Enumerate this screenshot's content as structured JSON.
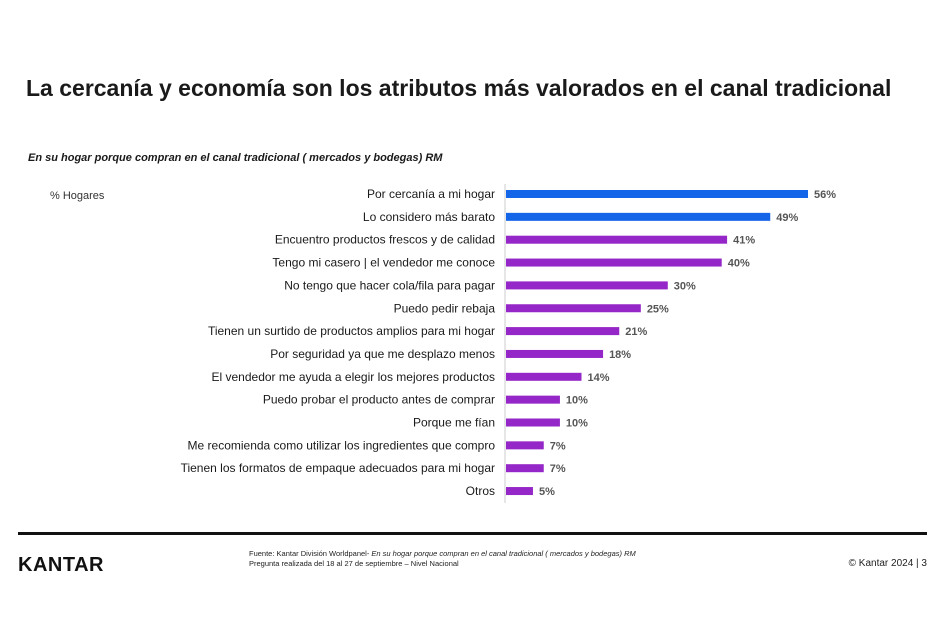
{
  "title": "La cercanía y economía son los atributos más valorados en el canal tradicional",
  "subtitle": "En su hogar porque compran en el canal tradicional ( mercados y bodegas) RM",
  "unit_label": "% Hogares",
  "colors": {
    "highlight": "#1565e8",
    "default": "#9526c7",
    "axis": "#cccccc",
    "label": "#555555"
  },
  "chart_data": {
    "type": "bar",
    "orientation": "horizontal",
    "categories": [
      "Por cercanía a mi hogar",
      "Lo considero más barato",
      "Encuentro productos frescos y de calidad",
      "Tengo mi casero | el vendedor me conoce",
      "No tengo que hacer cola/fila para pagar",
      "Puedo pedir rebaja",
      "Tienen un surtido de productos amplios para mi hogar",
      "Por seguridad ya que me desplazo menos",
      "El vendedor me ayuda a elegir los mejores productos",
      "Puedo probar el producto antes de comprar",
      "Porque me fían",
      "Me recomienda como utilizar los ingredientes que compro",
      "Tienen los formatos de empaque adecuados para mi hogar",
      "Otros"
    ],
    "values": [
      56,
      49,
      41,
      40,
      30,
      25,
      21,
      18,
      14,
      10,
      10,
      7,
      7,
      5
    ],
    "value_labels": [
      "56%",
      "49%",
      "41%",
      "40%",
      "30%",
      "25%",
      "21%",
      "18%",
      "14%",
      "10%",
      "10%",
      "7%",
      "7%",
      "5%"
    ],
    "highlighted": [
      0,
      1
    ],
    "xlim": [
      0,
      56
    ],
    "grid": false,
    "legend": "none"
  },
  "footer": {
    "logo": "KANTAR",
    "source_prefix": "Fuente: Kantar División Worldpanel- ",
    "source_title": "En su hogar porque compran en el canal tradicional ( mercados y bodegas) RM",
    "source_line2": "Pregunta realizada del 18 al 27 de septiembre  – Nivel Nacional",
    "copyright": "© Kantar 2024 | 3"
  }
}
